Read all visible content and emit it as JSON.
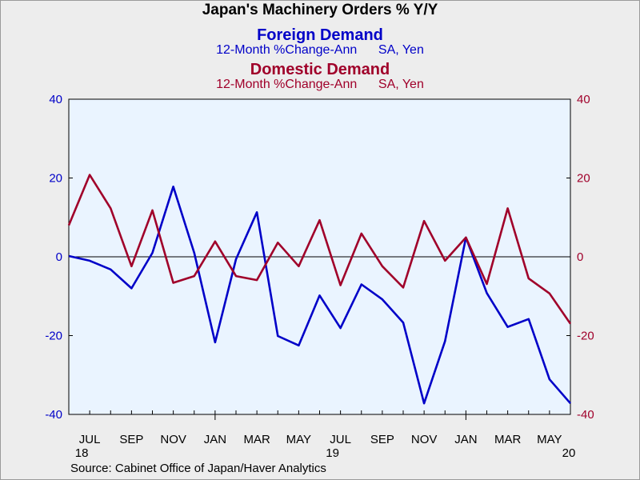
{
  "chart_data": {
    "type": "line",
    "title": "Japan's Machinery Orders % Y/Y",
    "subtitle_lines": [
      {
        "text": "Foreign Demand",
        "role": "series_name",
        "color": "#0000c8"
      },
      {
        "text": "12-Month %Change-Ann      SA, Yen",
        "role": "units",
        "color": "#0000c8"
      },
      {
        "text": "Domestic Demand",
        "role": "series_name",
        "color": "#a0002a"
      },
      {
        "text": "12-Month %Change-Ann      SA, Yen",
        "role": "units",
        "color": "#a0002a"
      }
    ],
    "ylim": [
      -40,
      40
    ],
    "y_ticks": [
      40,
      20,
      0,
      -20,
      -40
    ],
    "left_axis_color": "#0000c8",
    "right_axis_color": "#a0002a",
    "x": [
      "2018-06",
      "2018-07",
      "2018-08",
      "2018-09",
      "2018-10",
      "2018-11",
      "2018-12",
      "2019-01",
      "2019-02",
      "2019-03",
      "2019-04",
      "2019-05",
      "2019-06",
      "2019-07",
      "2019-08",
      "2019-09",
      "2019-10",
      "2019-11",
      "2019-12",
      "2020-01",
      "2020-02",
      "2020-03",
      "2020-04",
      "2020-05",
      "2020-06"
    ],
    "x_tick_labels": [
      {
        "month": "JUL",
        "year": "18",
        "date": "2018-07"
      },
      {
        "month": "SEP",
        "year": "",
        "date": "2018-09"
      },
      {
        "month": "NOV",
        "year": "",
        "date": "2018-11"
      },
      {
        "month": "JAN",
        "year": "",
        "date": "2019-01"
      },
      {
        "month": "MAR",
        "year": "",
        "date": "2019-03"
      },
      {
        "month": "MAY",
        "year": "",
        "date": "2019-05"
      },
      {
        "month": "JUL",
        "year": "19",
        "date": "2019-07"
      },
      {
        "month": "SEP",
        "year": "",
        "date": "2019-09"
      },
      {
        "month": "NOV",
        "year": "",
        "date": "2019-11"
      },
      {
        "month": "JAN",
        "year": "",
        "date": "2020-01"
      },
      {
        "month": "MAR",
        "year": "",
        "date": "2020-03"
      },
      {
        "month": "MAY",
        "year": "",
        "date": "2020-05"
      }
    ],
    "year_label_end": "20",
    "series": [
      {
        "name": "Foreign Demand",
        "color": "#0000c8",
        "axis": "left",
        "values": [
          0.2,
          -1.0,
          -3.2,
          -8.0,
          1.0,
          17.8,
          1.0,
          -21.7,
          -0.6,
          11.3,
          -20.1,
          -22.5,
          -9.8,
          -18.1,
          -7.0,
          -10.8,
          -16.7,
          -37.2,
          -21.4,
          4.9,
          -9.2,
          -17.8,
          -15.8,
          -31.1,
          -37.2
        ]
      },
      {
        "name": "Domestic Demand",
        "color": "#a0002a",
        "axis": "right",
        "values": [
          8.0,
          20.8,
          12.3,
          -2.4,
          11.8,
          -6.6,
          -4.9,
          3.9,
          -4.9,
          -5.9,
          3.6,
          -2.4,
          9.3,
          -7.2,
          5.9,
          -2.4,
          -7.8,
          9.1,
          -1.0,
          4.9,
          -6.9,
          12.3,
          -5.5,
          -9.3,
          -17.0
        ]
      }
    ],
    "zero_line": true,
    "source": "Source:  Cabinet Office of Japan/Haver Analytics"
  }
}
